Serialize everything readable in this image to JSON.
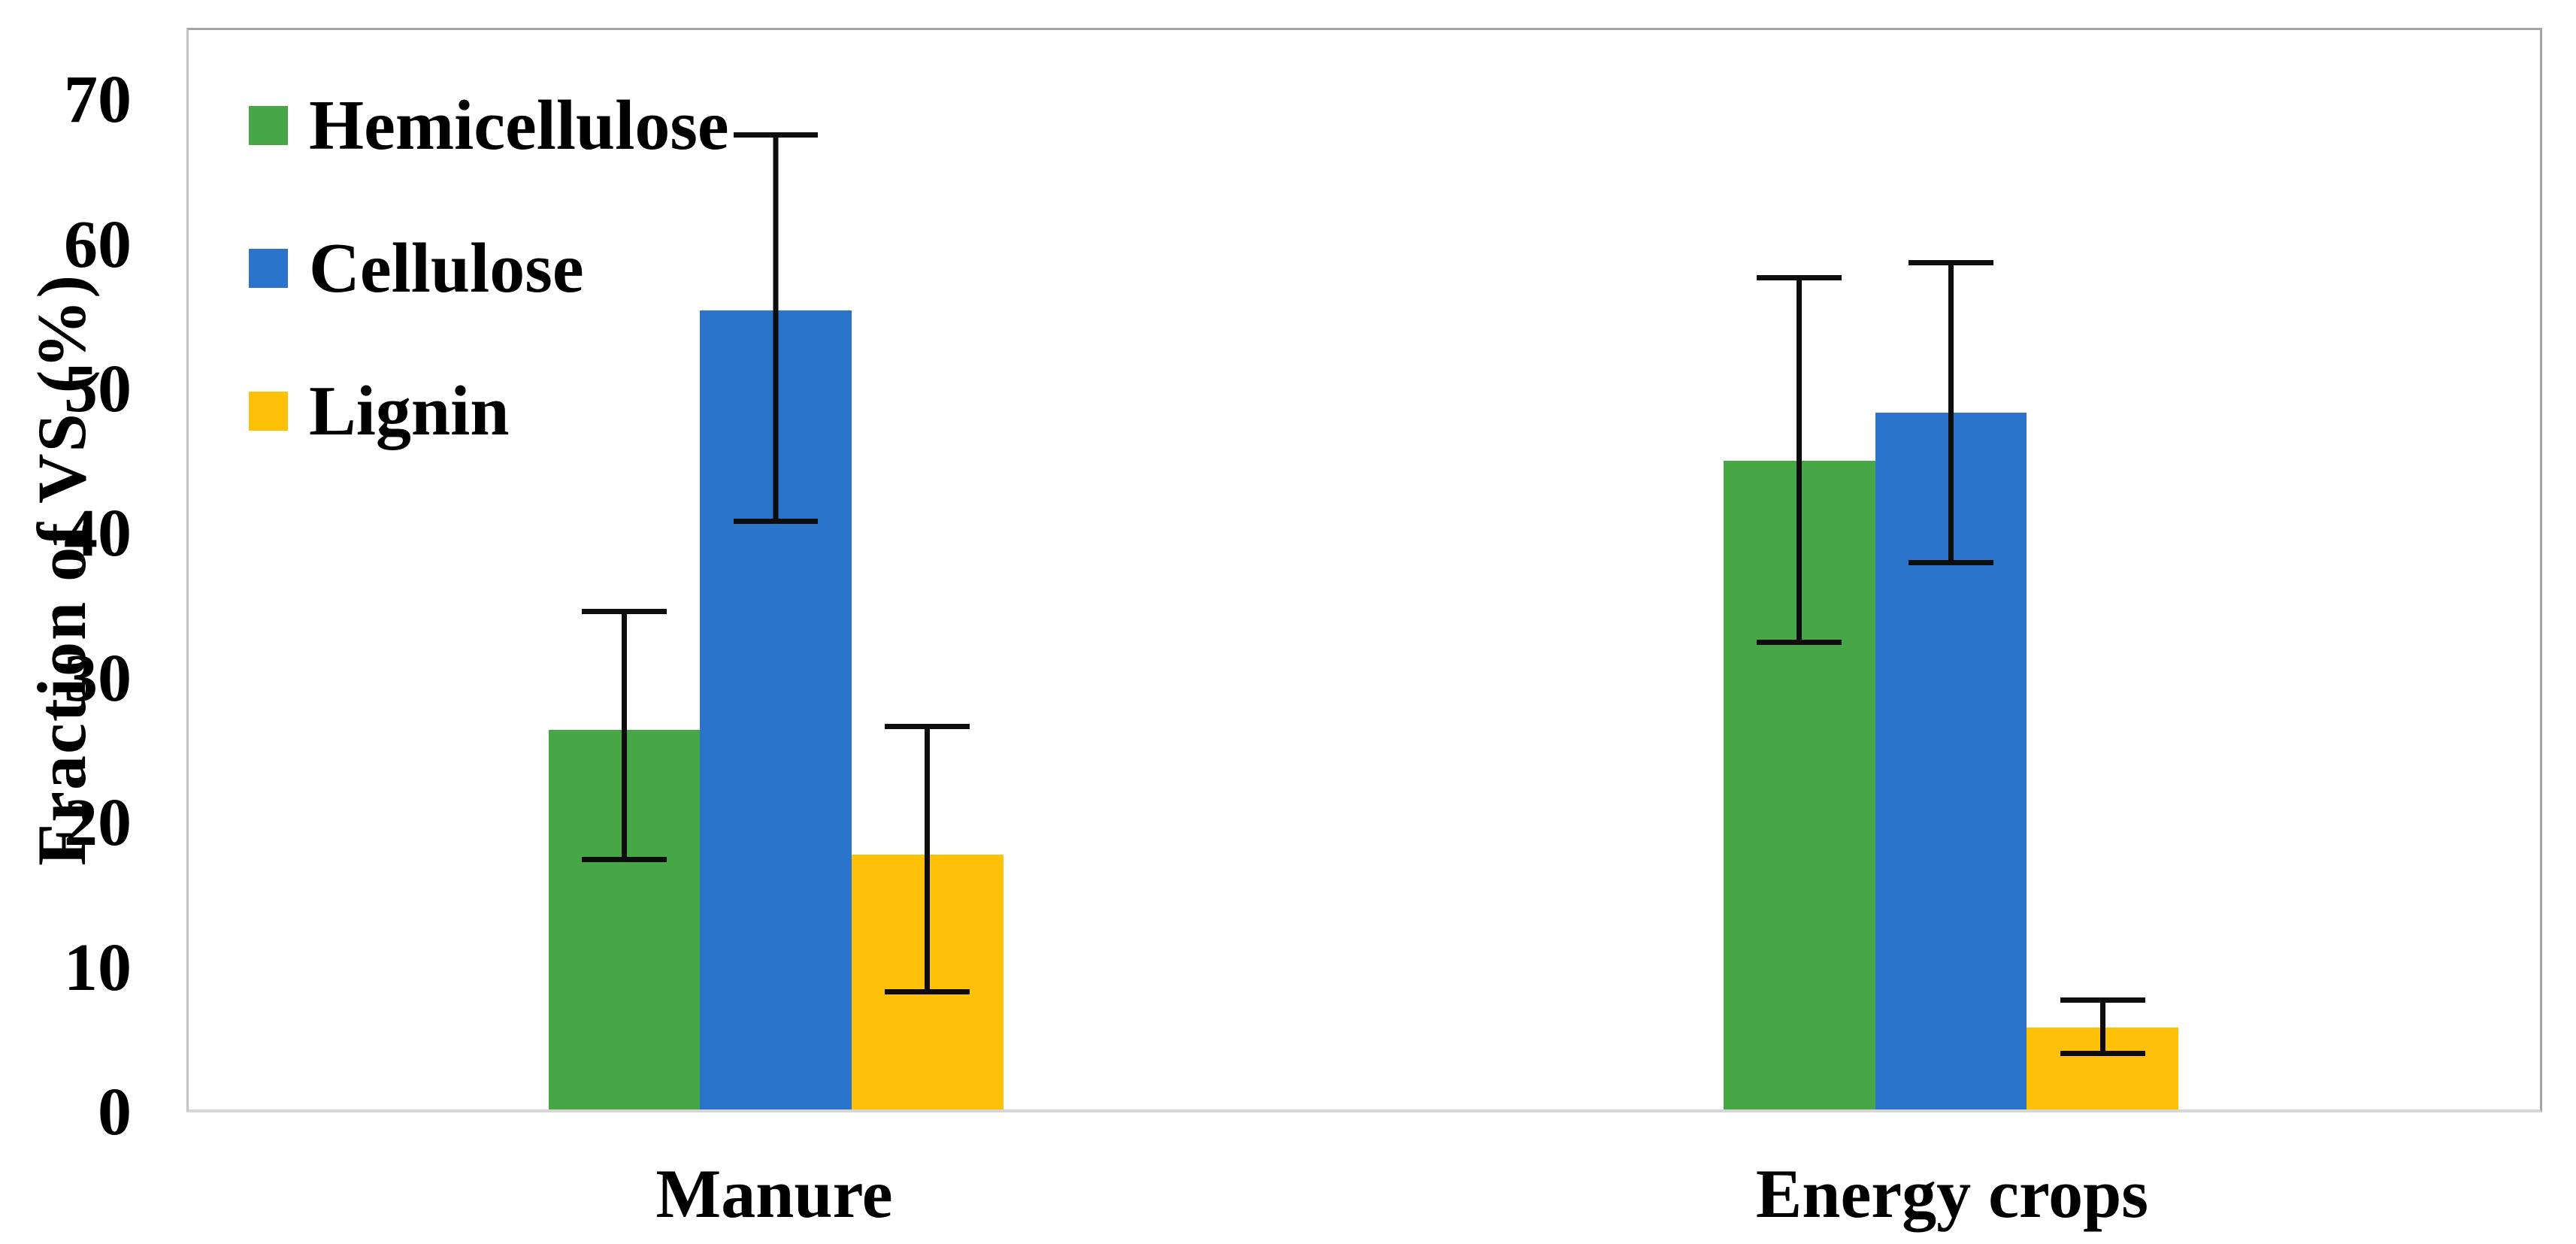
{
  "chart_data": {
    "type": "bar",
    "title": "",
    "ylabel": "Fraction of VS (%)",
    "xlabel": "",
    "categories": [
      "Manure",
      "Energy crops"
    ],
    "series": [
      {
        "name": "Hemicellulose",
        "color": "#47a747",
        "values": [
          26.4,
          45.1
        ],
        "err_low": [
          17.2,
          32.3
        ],
        "err_high": [
          34.8,
          58.0
        ]
      },
      {
        "name": "Cellulose",
        "color": "#2a74cb",
        "values": [
          55.5,
          48.4
        ],
        "err_low": [
          40.7,
          37.8
        ],
        "err_high": [
          67.9,
          59.0
        ]
      },
      {
        "name": "Lignin",
        "color": "#fec107",
        "values": [
          17.7,
          5.7
        ],
        "err_low": [
          8.0,
          3.7
        ],
        "err_high": [
          26.8,
          7.8
        ]
      }
    ],
    "yticks": [
      0,
      10,
      20,
      30,
      40,
      50,
      60,
      70
    ],
    "ylim": [
      0,
      75
    ],
    "grid": false,
    "error_bars": true,
    "legend_position": "top-left",
    "axis_line_color": "#c4c4c4",
    "border_color": "#a6a6a6",
    "error_bar_color": "#0d0d0d"
  }
}
